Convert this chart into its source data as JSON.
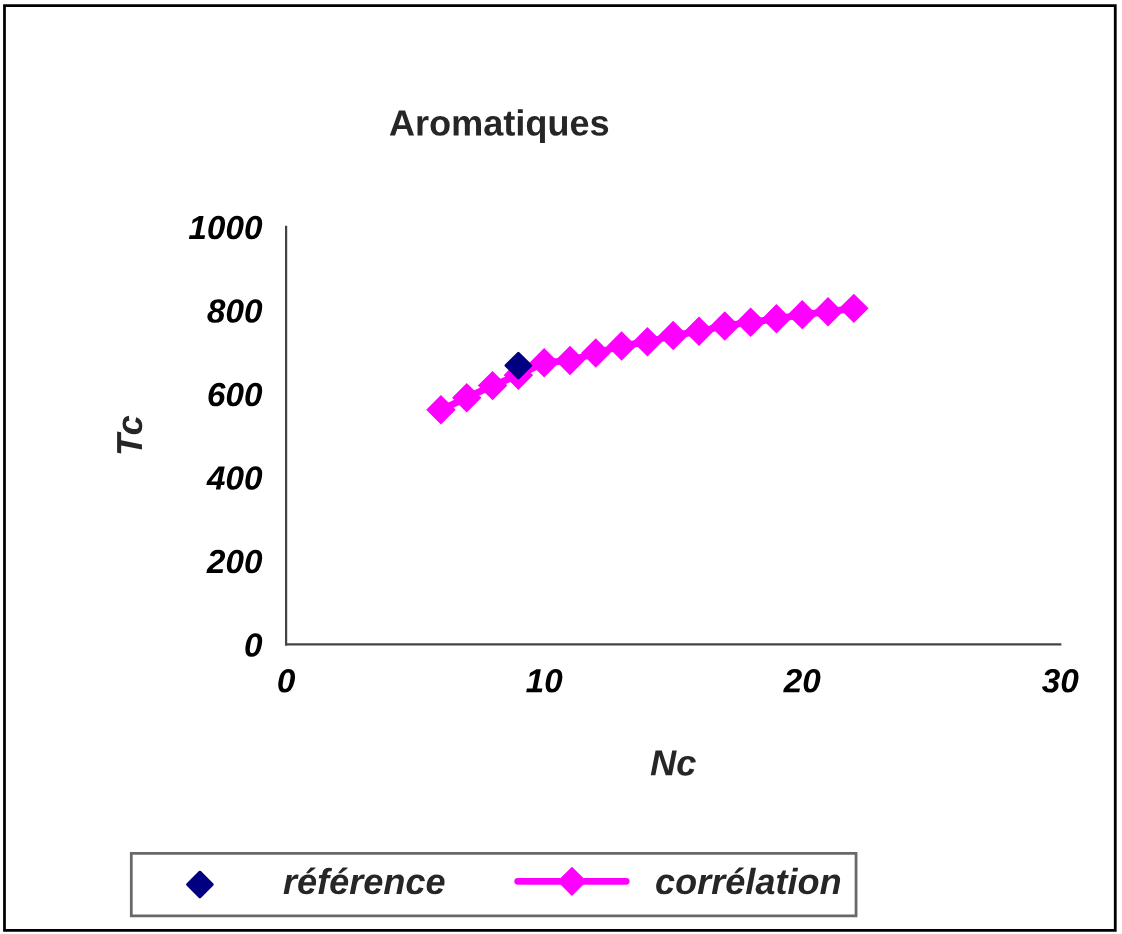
{
  "chart_data": {
    "type": "scatter",
    "title": "Aromatiques",
    "xlabel": "Nc",
    "ylabel": "Tc",
    "xlim": [
      0,
      30
    ],
    "xticks": [
      0,
      10,
      20,
      30
    ],
    "ylim": [
      0,
      1000
    ],
    "yticks": [
      0,
      200,
      400,
      600,
      800,
      1000
    ],
    "marker": "diamond",
    "grid": false,
    "legend": "bottom",
    "series": [
      {
        "name": "référence",
        "color": "#000080",
        "x": [
          9
        ],
        "values": [
          668
        ]
      },
      {
        "name": "corrélation",
        "type": "line",
        "color": "#ff00ff",
        "x": [
          6,
          7,
          8,
          9,
          10,
          11,
          12,
          13,
          14,
          15,
          16,
          17,
          18,
          19,
          20,
          21,
          22
        ],
        "values": [
          562,
          591,
          620,
          645,
          675,
          680,
          698,
          715,
          725,
          740,
          750,
          763,
          772,
          780,
          790,
          797,
          805
        ]
      }
    ]
  }
}
